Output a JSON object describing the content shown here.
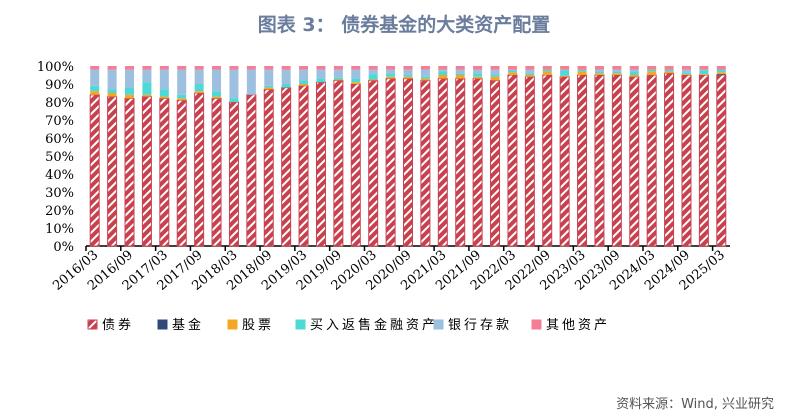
{
  "title": "图表 3：  债券基金的大类资产配置",
  "source": "资料来源：Wind, 兴业研究",
  "chart_data": {
    "type": "bar",
    "stacked": true,
    "title": "图表 3：  债券基金的大类资产配置",
    "xlabel": "",
    "ylabel": "",
    "ylim": [
      0,
      100
    ],
    "yticks": [
      "0%",
      "10%",
      "20%",
      "30%",
      "40%",
      "50%",
      "60%",
      "70%",
      "80%",
      "90%",
      "100%"
    ],
    "legend_position": "bottom",
    "categories": [
      "2016/03",
      "2016/06",
      "2016/09",
      "2016/12",
      "2017/03",
      "2017/06",
      "2017/09",
      "2017/12",
      "2018/03",
      "2018/06",
      "2018/09",
      "2018/12",
      "2019/03",
      "2019/06",
      "2019/09",
      "2019/12",
      "2020/03",
      "2020/06",
      "2020/09",
      "2020/12",
      "2021/03",
      "2021/06",
      "2021/09",
      "2021/12",
      "2022/03",
      "2022/06",
      "2022/09",
      "2022/12",
      "2023/03",
      "2023/06",
      "2023/09",
      "2023/12",
      "2024/03",
      "2024/06",
      "2024/09",
      "2024/12",
      "2025/03"
    ],
    "tick_labels": [
      "2016/03",
      "2016/09",
      "2017/03",
      "2017/09",
      "2018/03",
      "2018/09",
      "2019/03",
      "2019/09",
      "2020/03",
      "2020/09",
      "2021/03",
      "2021/09",
      "2022/03",
      "2022/09",
      "2023/03",
      "2023/09",
      "2024/03",
      "2024/09",
      "2025/03"
    ],
    "series": [
      {
        "name": "债券",
        "color": "#c8414f",
        "pattern": "hatch",
        "values": [
          84,
          83,
          82,
          83,
          82,
          81,
          85,
          82,
          80,
          84,
          87,
          88,
          89,
          91,
          92,
          90,
          92,
          93,
          93,
          92,
          93,
          93,
          93,
          92,
          95,
          94,
          95,
          94,
          95,
          95,
          95,
          94,
          95,
          96,
          95,
          95,
          95
        ]
      },
      {
        "name": "基金",
        "color": "#2e4a7a",
        "values": [
          0,
          0,
          0,
          0,
          0,
          0,
          0,
          0,
          0,
          0,
          0,
          0,
          0,
          0,
          0,
          0,
          0,
          0,
          0,
          0,
          0,
          0,
          0,
          0,
          0,
          0,
          0,
          0,
          0,
          0,
          0,
          0,
          0,
          0,
          0,
          0,
          0.5
        ]
      },
      {
        "name": "股票",
        "color": "#f5a623",
        "values": [
          2,
          2,
          2,
          1,
          1,
          1,
          1,
          1,
          0,
          0,
          1,
          0,
          1,
          0,
          0.5,
          1,
          0.5,
          1,
          1,
          1,
          2,
          2,
          1,
          2,
          1.5,
          1,
          2,
          0.5,
          2,
          1,
          1,
          1,
          2,
          1,
          0.5,
          0.5,
          1
        ]
      },
      {
        "name": "买入返售金融资产",
        "color": "#4dd9d6",
        "values": [
          3,
          2,
          4,
          7,
          4,
          2,
          4,
          3,
          2,
          0,
          1,
          2,
          2,
          2,
          1,
          2,
          3,
          2,
          1,
          1,
          2,
          1,
          2,
          1,
          1,
          1,
          1,
          3,
          1,
          1,
          1,
          2,
          1,
          1,
          1,
          2,
          1.5
        ]
      },
      {
        "name": "银行存款",
        "color": "#9dbfe0",
        "values": [
          9,
          11,
          10,
          7,
          11,
          14,
          8,
          12,
          16,
          14,
          9,
          8,
          6,
          5,
          4.5,
          5,
          2.5,
          2,
          3,
          4,
          1,
          2,
          2,
          3,
          0.5,
          2,
          0,
          0.5,
          0,
          1,
          1,
          1,
          0,
          0,
          1.5,
          0.5,
          0
        ]
      },
      {
        "name": "其他资产",
        "color": "#f47e96",
        "values": [
          2,
          2,
          2,
          2,
          2,
          2,
          2,
          2,
          2,
          2,
          2,
          2,
          2,
          2,
          2,
          2,
          2,
          2,
          2,
          2,
          2,
          2,
          2,
          2,
          2,
          2,
          2,
          2,
          2,
          2,
          2,
          2,
          2,
          2,
          2,
          2,
          2
        ]
      }
    ]
  }
}
